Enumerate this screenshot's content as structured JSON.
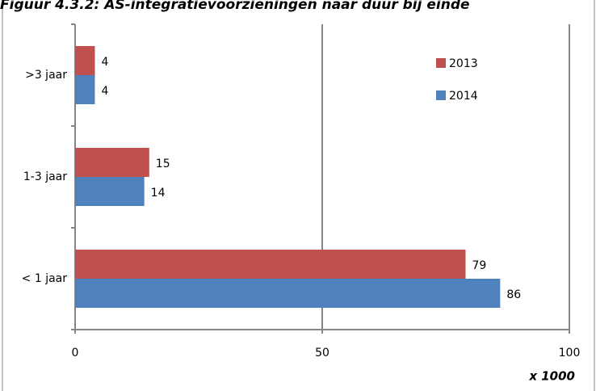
{
  "chart_data": {
    "type": "bar",
    "orientation": "horizontal",
    "title": "Figuur 4.3.2: AS-integratievoorzieningen naar duur bij einde",
    "categories": [
      ">3 jaar",
      "1-3 jaar",
      "< 1 jaar"
    ],
    "series": [
      {
        "name": "2013",
        "color": "#c0504d",
        "values": [
          4,
          15,
          79
        ]
      },
      {
        "name": "2014",
        "color": "#4f81bd",
        "values": [
          4,
          14,
          86
        ]
      }
    ],
    "xlim": [
      0,
      100
    ],
    "xticks": [
      0,
      50,
      100
    ],
    "grid": true,
    "x_unit_label": "x 1000",
    "legend": "upper-right"
  }
}
